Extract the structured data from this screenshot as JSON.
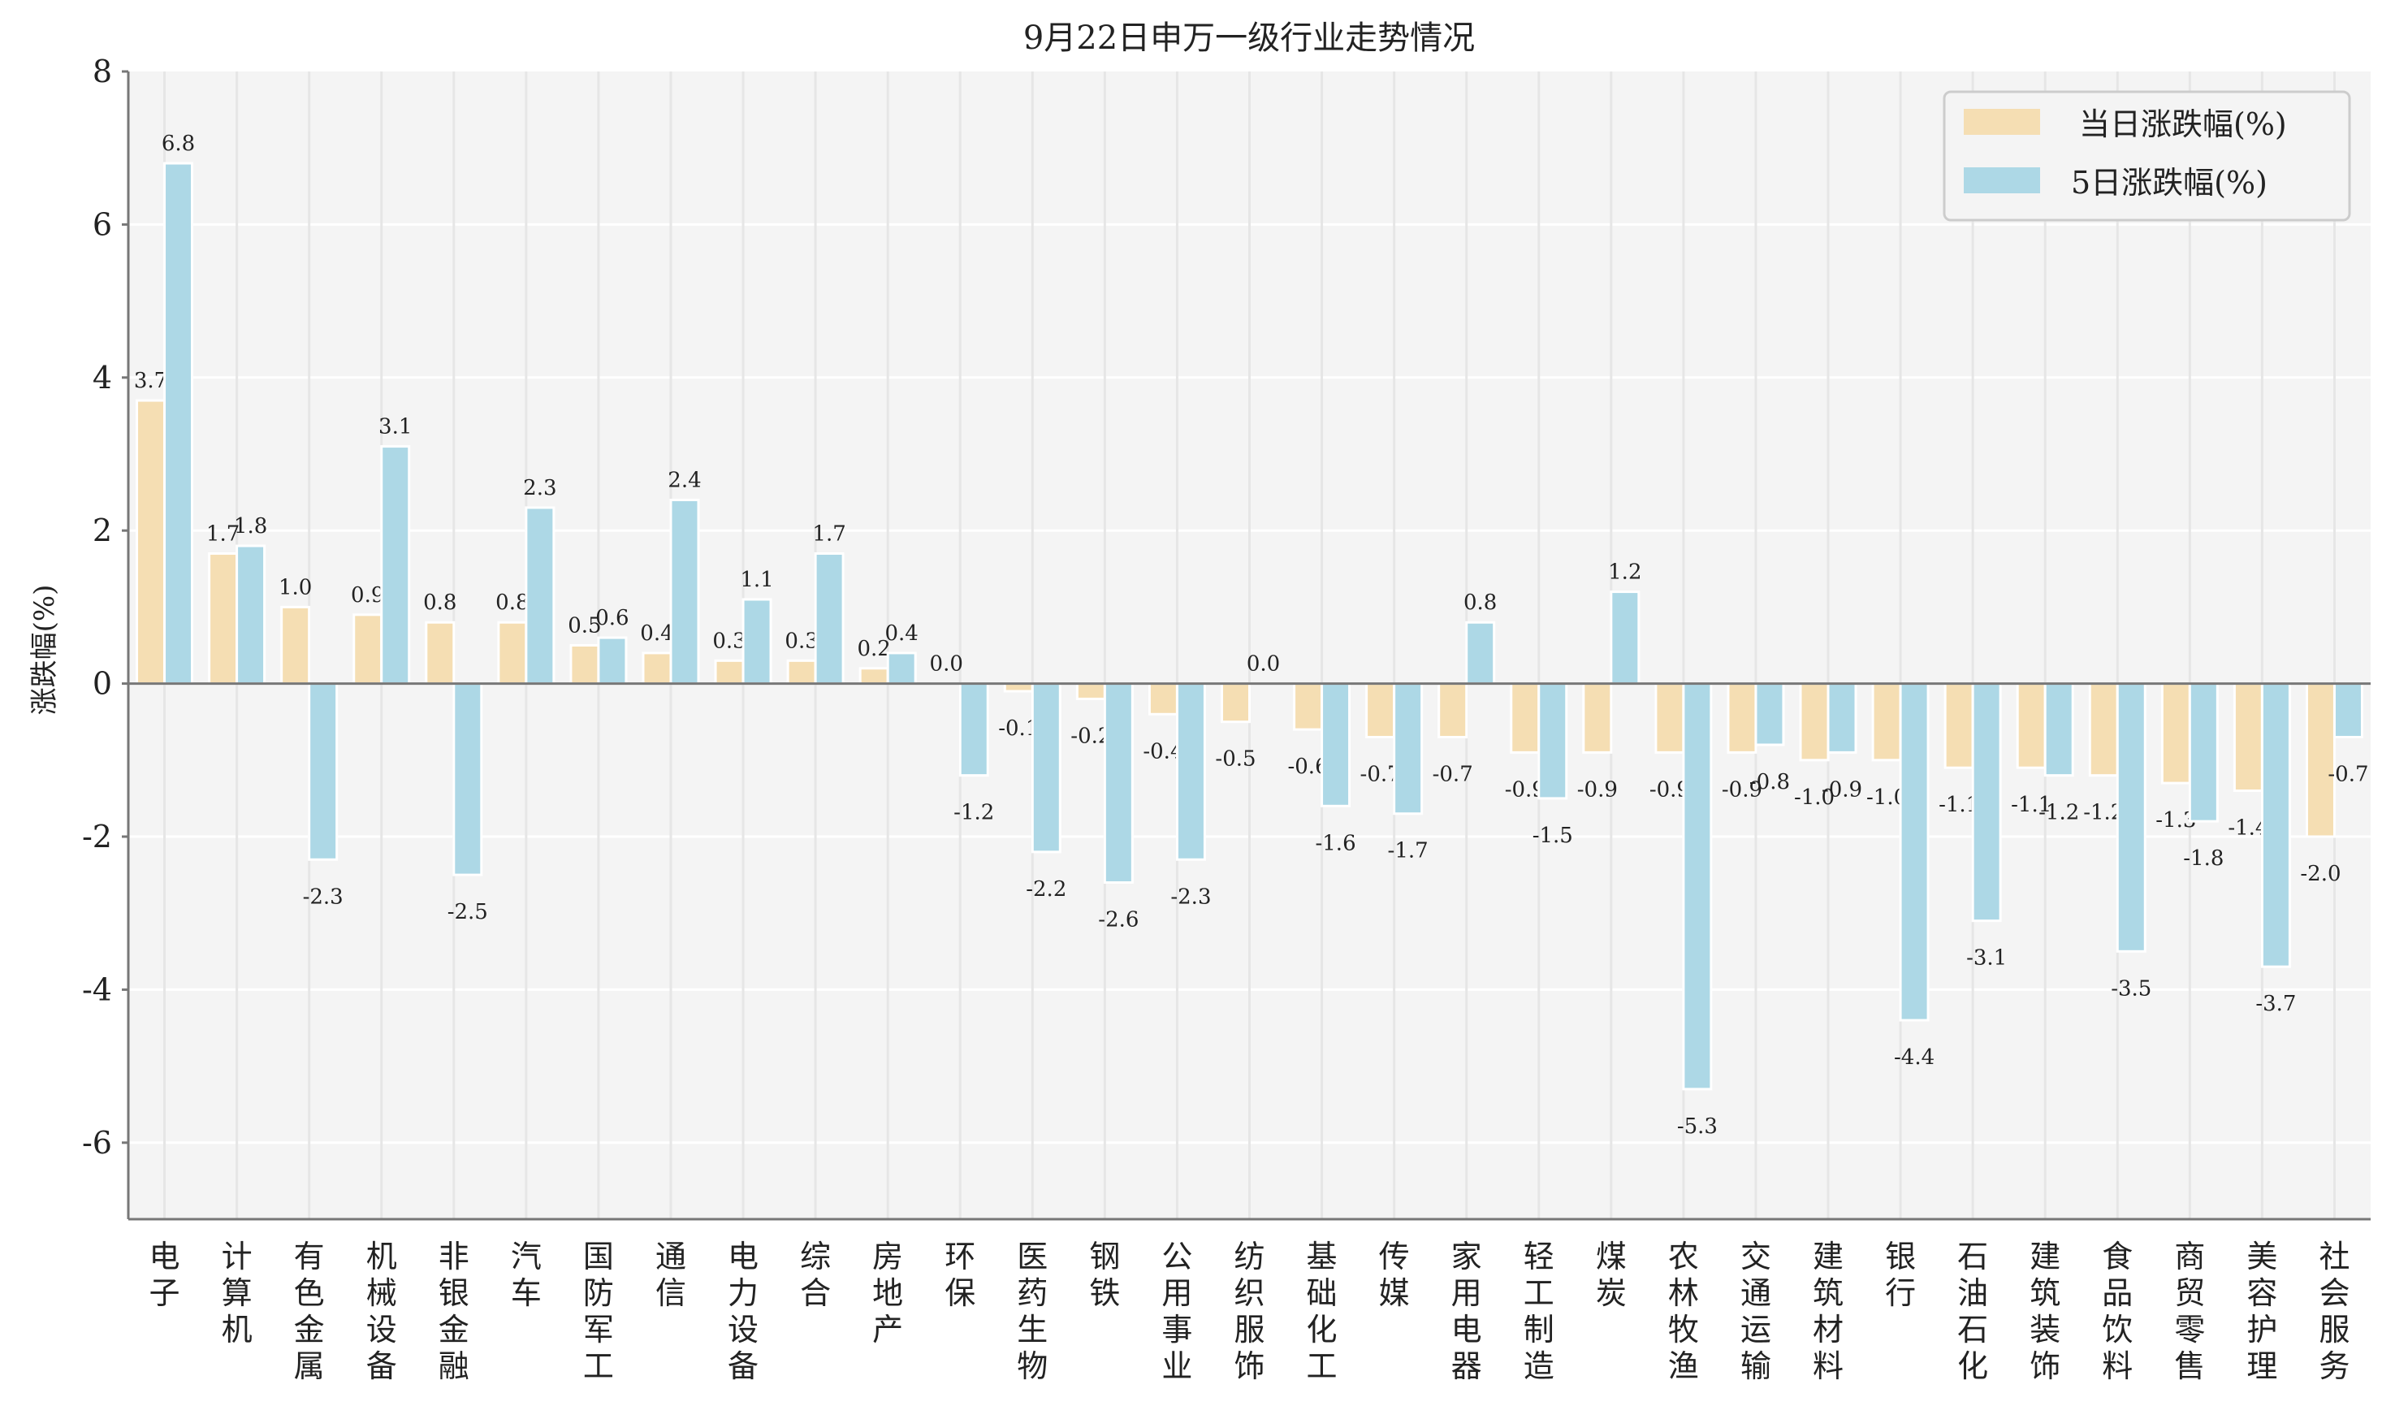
{
  "chart_data": {
    "type": "bar",
    "title": "9月22日申万一级行业走势情况",
    "xlabel": "",
    "ylabel": "涨跌幅(%)",
    "ylim": [
      -7,
      8
    ],
    "yticks": [
      -6,
      -4,
      -2,
      0,
      2,
      4,
      6,
      8
    ],
    "grid": true,
    "legend_position": "top-right",
    "colors": {
      "daily": "#f5deb3",
      "five_day": "#add8e6",
      "background": "#f4f4f4"
    },
    "categories": [
      "电子",
      "计算机",
      "有色金属",
      "机械设备",
      "非银金融",
      "汽车",
      "国防军工",
      "通信",
      "电力设备",
      "综合",
      "房地产",
      "环保",
      "医药生物",
      "钢铁",
      "公用事业",
      "纺织服饰",
      "基础化工",
      "传媒",
      "家用电器",
      "轻工制造",
      "煤炭",
      "农林牧渔",
      "交通运输",
      "建筑材料",
      "银行",
      "石油石化",
      "建筑装饰",
      "食品饮料",
      "商贸零售",
      "美容护理",
      "社会服务"
    ],
    "series": [
      {
        "name": "当日涨跌幅(%)",
        "values": [
          3.7,
          1.7,
          1.0,
          0.9,
          0.8,
          0.8,
          0.5,
          0.4,
          0.3,
          0.3,
          0.2,
          0.0,
          -0.1,
          -0.2,
          -0.4,
          -0.5,
          -0.6,
          -0.7,
          -0.7,
          -0.9,
          -0.9,
          -0.9,
          -0.9,
          -1.0,
          -1.0,
          -1.1,
          -1.1,
          -1.2,
          -1.3,
          -1.4,
          -2.0
        ]
      },
      {
        "name": "5日涨跌幅(%)",
        "values": [
          6.8,
          1.8,
          -2.3,
          3.1,
          -2.5,
          2.3,
          0.6,
          2.4,
          1.1,
          1.7,
          0.4,
          -1.2,
          -2.2,
          -2.6,
          -2.3,
          0.0,
          -1.6,
          -1.7,
          0.8,
          -1.5,
          1.2,
          -5.3,
          -0.8,
          -0.9,
          -4.4,
          -3.1,
          -1.2,
          -3.5,
          -1.8,
          -3.7,
          -0.7
        ]
      }
    ]
  }
}
